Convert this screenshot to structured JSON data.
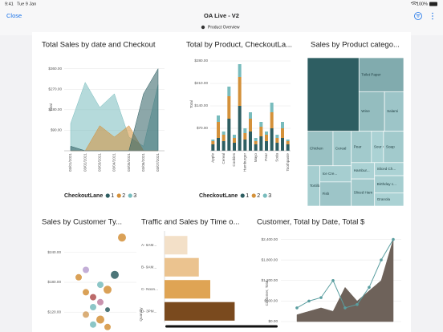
{
  "status_bar": {
    "time": "9:41",
    "date": "Tue 9 Jan",
    "battery": "100%"
  },
  "nav": {
    "close": "Close",
    "title": "OA Live - V2",
    "subtitle": "Product Overview"
  },
  "chart_data": [
    {
      "type": "area",
      "title": "Total Sales by date and  Checkout",
      "y_label": "Total",
      "categories": [
        "03/01/2021",
        "03/02/2021",
        "03/03/2021",
        "03/04/2021",
        "03/05/2021",
        "03/06/2021",
        "03/07/2021"
      ],
      "ylim": [
        0,
        380
      ],
      "yticks": [
        {
          "value": 90,
          "label": "$90.00"
        },
        {
          "value": 180,
          "label": "$180.00"
        },
        {
          "value": 270,
          "label": "$270.00"
        },
        {
          "value": 360,
          "label": "$360.00"
        }
      ],
      "legend_title": "CheckoutLane",
      "series": [
        {
          "name": "1",
          "color": "#2e5e62",
          "values": [
            20,
            0,
            0,
            0,
            0,
            250,
            360
          ]
        },
        {
          "name": "2",
          "color": "#d4913a",
          "values": [
            0,
            0,
            110,
            60,
            110,
            0,
            0
          ]
        },
        {
          "name": "3",
          "color": "#78bcbd",
          "values": [
            120,
            300,
            190,
            250,
            60,
            20,
            290
          ]
        }
      ]
    },
    {
      "type": "stacked_bar",
      "title": "Total by Product, CheckoutLa...",
      "y_label": "Total",
      "categories": [
        "Apple",
        null,
        "Cereal",
        null,
        "Cookies",
        null,
        "Hamburger",
        null,
        "Mayo",
        null,
        "Pear",
        null,
        "Soda",
        null,
        "Toothpaste"
      ],
      "ylim": [
        0,
        290
      ],
      "yticks": [
        {
          "value": 70,
          "label": "$70.00"
        },
        {
          "value": 140,
          "label": "$140.00"
        },
        {
          "value": 210,
          "label": "$210.00"
        },
        {
          "value": 280,
          "label": "$280.00"
        }
      ],
      "legend_title": "CheckoutLane",
      "series": [
        {
          "name": "1",
          "color": "#2e5e62",
          "values": [
            20,
            40,
            30,
            100,
            25,
            140,
            35,
            60,
            20,
            45,
            30,
            70,
            25,
            40,
            20
          ]
        },
        {
          "name": "2",
          "color": "#d4913a",
          "values": [
            10,
            50,
            20,
            70,
            15,
            90,
            20,
            40,
            10,
            30,
            20,
            50,
            15,
            30,
            10
          ]
        },
        {
          "name": "3",
          "color": "#78bcbd",
          "values": [
            5,
            20,
            10,
            30,
            10,
            40,
            15,
            20,
            10,
            15,
            10,
            30,
            10,
            20,
            5
          ]
        }
      ]
    },
    {
      "type": "treemap",
      "title": "Sales by Product catego...",
      "categories": [
        null,
        "Toilet Paper",
        "Wine",
        "Salami",
        "Chicken",
        "Cereal",
        "Tortilla",
        "Ice Cre...",
        "Fish",
        "Pear",
        "Sour Cr...",
        "Soap",
        "Hambur...",
        "Sliced Ham",
        "Sliced Ch...",
        "Birthday c...",
        "Granola"
      ],
      "values": [
        30,
        12,
        8,
        6,
        7,
        5,
        4,
        4,
        6,
        5,
        3,
        5,
        3,
        5,
        3,
        4,
        3
      ],
      "colors": [
        "#b9dfe1",
        "#2e5e62"
      ]
    },
    {
      "type": "bubble",
      "title": "Sales by Customer Ty...",
      "x": [
        8,
        3,
        7,
        2,
        5,
        6,
        3,
        4,
        5,
        4,
        6,
        3,
        5,
        4,
        6
      ],
      "values": [
        270,
        205,
        195,
        190,
        175,
        165,
        160,
        150,
        140,
        130,
        125,
        115,
        105,
        95,
        90
      ],
      "sizes": [
        5,
        4,
        5,
        4,
        4,
        5,
        4,
        4,
        4,
        4,
        3,
        4,
        5,
        4,
        4
      ],
      "colors": [
        "#d4913a",
        "#b8a0d0",
        "#2e5e62",
        "#d4913a",
        "#78bcbd",
        "#d4913a",
        "#d4913a",
        "#b05050",
        "#c080a0",
        "#78bcbd",
        "#2e5e62",
        "#d4a060",
        "#d4913a",
        "#78bcbd",
        "#d4913a"
      ],
      "xlim": [
        0,
        10
      ],
      "ylim": [
        80,
        280
      ],
      "yticks": [
        {
          "value": 120,
          "label": "$120.00"
        },
        {
          "value": 180,
          "label": "$180.00"
        },
        {
          "value": 240,
          "label": "$240.00"
        }
      ]
    },
    {
      "type": "hbar",
      "title": "Traffic and Sales by Time o...",
      "y_label": "Quantity",
      "categories": [
        "A- 6AM...",
        "B- 9AM...",
        "C- Noon...",
        "D- 3PM..."
      ],
      "values": [
        30,
        45,
        60,
        92
      ],
      "xlim": [
        0,
        100
      ],
      "colors": [
        "#f3e0c8",
        "#ebc38f",
        "#dfa454",
        "#7a4a1e"
      ]
    },
    {
      "type": "area_line",
      "title": "Customer, Total by Date, Total $",
      "y_label": "Customer, Total",
      "categories": [
        null,
        null,
        null,
        null,
        null,
        null,
        null,
        null,
        null
      ],
      "ylim": [
        0,
        2600
      ],
      "yticks": [
        {
          "value": 0,
          "label": "$0.00"
        },
        {
          "value": 600,
          "label": "$600.00"
        },
        {
          "value": 1200,
          "label": "$1,200.00"
        },
        {
          "value": 1800,
          "label": "$1,800.00"
        },
        {
          "value": 2400,
          "label": "$2,400.00"
        }
      ],
      "series": [
        {
          "style": "area",
          "color": "#6e625a",
          "values": [
            200,
            300,
            400,
            300,
            1000,
            600,
            900,
            1200,
            2400
          ]
        },
        {
          "style": "line",
          "color": "#5a9ea0",
          "values": [
            400,
            600,
            700,
            1200,
            400,
            500,
            1000,
            1800,
            2400
          ]
        }
      ]
    }
  ]
}
